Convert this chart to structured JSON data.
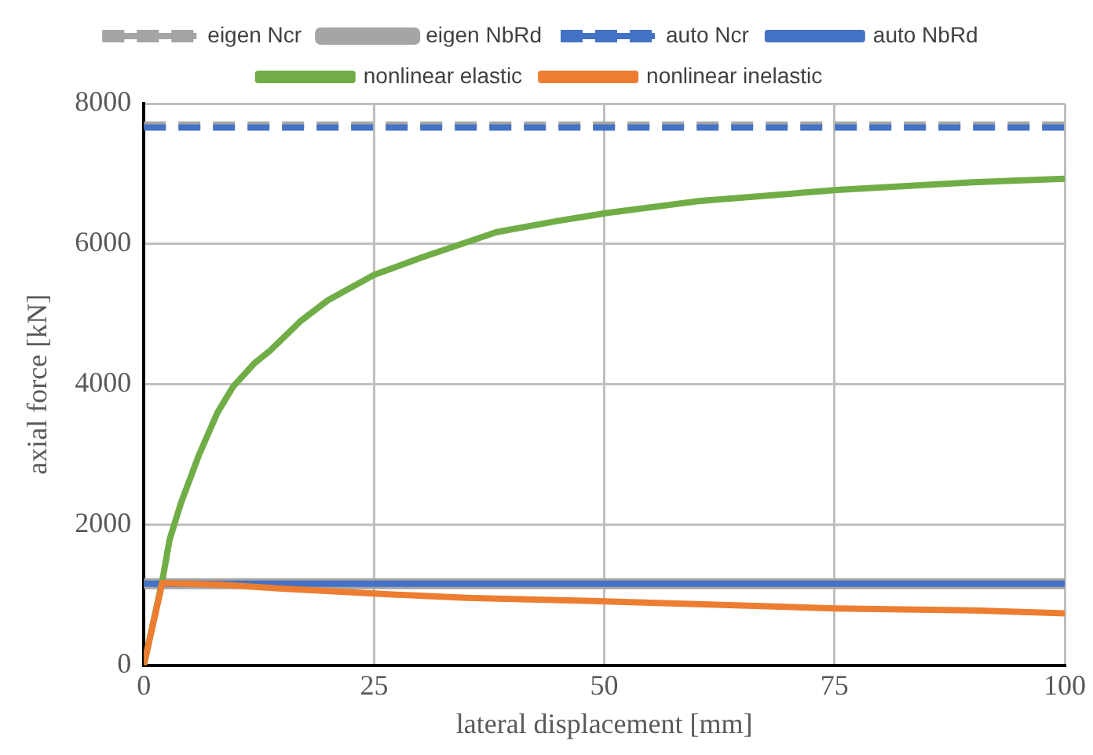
{
  "chart_data": {
    "type": "line",
    "xlabel": "lateral displacement [mm]",
    "ylabel": "axial force [kN]",
    "xlim": [
      0,
      100
    ],
    "xticks": [
      0,
      25,
      50,
      75,
      100
    ],
    "ylim": [
      0,
      8000
    ],
    "yticks": [
      0,
      2000,
      4000,
      6000,
      8000
    ],
    "grid": true,
    "legend": "top",
    "marker": "none",
    "series": [
      {
        "name": "eigen Ncr",
        "color": "#a5a5a5",
        "line_style": "dashed",
        "x": [
          0,
          100
        ],
        "values": [
          7700,
          7700
        ]
      },
      {
        "name": "eigen NbRd",
        "color": "#a5a5a5",
        "line_style": "solid",
        "x": [
          0,
          100
        ],
        "values": [
          1160,
          1160
        ]
      },
      {
        "name": "auto Ncr",
        "color": "#4472c4",
        "line_style": "dashed",
        "x": [
          0,
          100
        ],
        "values": [
          7660,
          7660
        ]
      },
      {
        "name": "auto NbRd",
        "color": "#4472c4",
        "line_style": "solid",
        "x": [
          0,
          100
        ],
        "values": [
          1160,
          1160
        ]
      },
      {
        "name": "nonlinear elastic",
        "color": "#70ad47",
        "line_style": "solid",
        "x": [
          0,
          2,
          2.8,
          4,
          6,
          8,
          9.7,
          12,
          13.7,
          17,
          20,
          25,
          30,
          38.3,
          45,
          50.2,
          60.2,
          75.3,
          90,
          100
        ],
        "values": [
          0,
          1200,
          1790,
          2300,
          3000,
          3600,
          3970,
          4300,
          4480,
          4900,
          5200,
          5560,
          5800,
          6170,
          6330,
          6440,
          6610,
          6770,
          6880,
          6930
        ]
      },
      {
        "name": "nonlinear inelastic",
        "color": "#ed7d31",
        "line_style": "solid",
        "x": [
          0,
          2,
          8,
          15,
          25,
          35,
          50,
          60,
          75,
          90,
          100
        ],
        "values": [
          0,
          1170,
          1150,
          1090,
          1020,
          960,
          910,
          870,
          810,
          780,
          740
        ]
      }
    ]
  }
}
